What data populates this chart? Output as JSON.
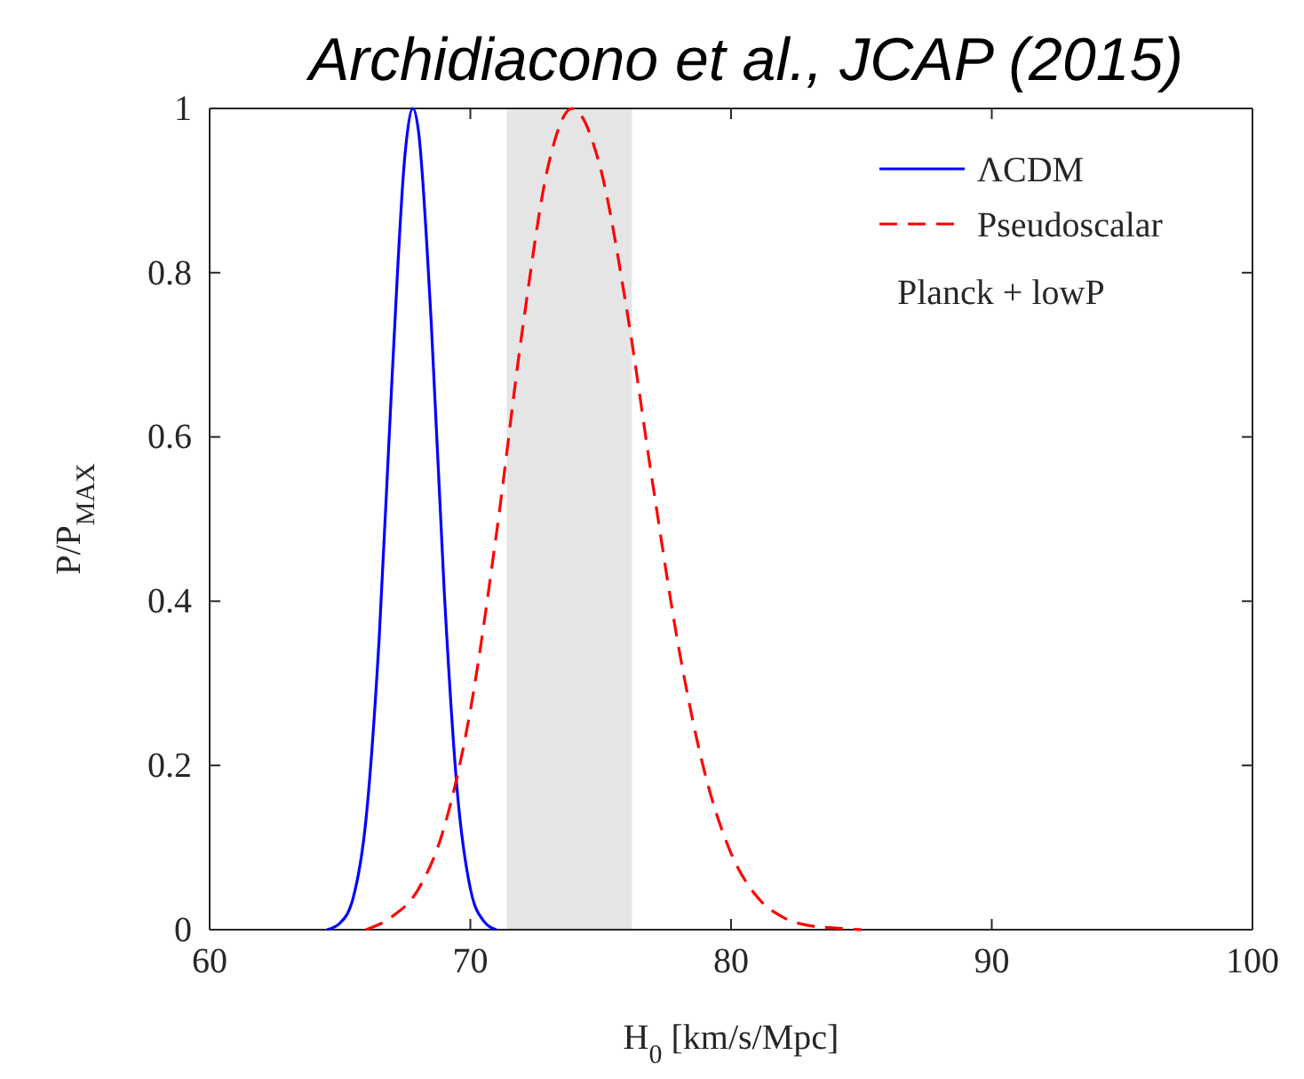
{
  "chart_data": {
    "type": "line",
    "title": "Archidiacono et al., JCAP (2015)",
    "xlabel": "H$_{0}$ [km/s/Mpc]",
    "ylabel": "P/P$_{MAX}$",
    "xlim": [
      60,
      100
    ],
    "xticks": [
      60,
      70,
      80,
      90,
      100
    ],
    "ylim": [
      0,
      1
    ],
    "yticks": [
      0,
      0.2,
      0.4,
      0.6,
      0.8,
      1
    ],
    "grid": false,
    "legend": "top right",
    "legend_title": "Planck + lowP",
    "bands": [
      {
        "axis": "x",
        "from": 71.4,
        "to": 76.2,
        "color": "#e5e5e5"
      }
    ],
    "series": [
      {
        "name": "ΛCDM",
        "color": "#0000ff",
        "line_style": "solid",
        "x": [
          64.5,
          65,
          65.5,
          66,
          66.5,
          67,
          67.5,
          67.8,
          68,
          68.5,
          69,
          69.5,
          70,
          70.5,
          71
        ],
        "values": [
          0,
          0.008,
          0.038,
          0.135,
          0.353,
          0.674,
          0.946,
          1,
          0.975,
          0.739,
          0.411,
          0.168,
          0.05,
          0.011,
          0
        ]
      },
      {
        "name": "Pseudoscalar",
        "color": "#ff0000",
        "line_style": "dashed",
        "x": [
          66,
          67,
          68,
          69,
          70,
          71,
          72,
          73,
          73.9,
          75,
          76,
          77,
          78,
          79,
          80,
          81,
          82,
          83,
          84,
          85
        ],
        "values": [
          0,
          0.016,
          0.049,
          0.125,
          0.267,
          0.482,
          0.731,
          0.932,
          1,
          0.926,
          0.755,
          0.542,
          0.342,
          0.19,
          0.093,
          0.04,
          0.015,
          0.005,
          0.002,
          0
        ]
      }
    ]
  }
}
